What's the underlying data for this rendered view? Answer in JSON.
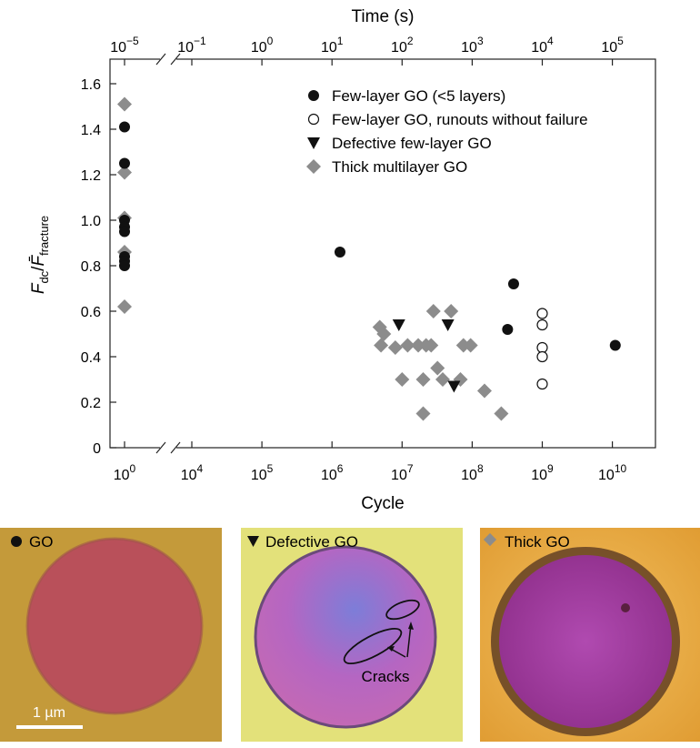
{
  "chart_data": {
    "type": "scatter",
    "xlabel": "Cycle",
    "x2label": "Time (s)",
    "ylabel": "F_dc/F̄_fracture",
    "xscale": "log",
    "x_axis_break": "between 10^0 and 10^4 cycles",
    "ylim": [
      0,
      1.7
    ],
    "yticks": [
      "0",
      "0.2",
      "0.4",
      "0.6",
      "0.8",
      "1.0",
      "1.2",
      "1.4",
      "1.6"
    ],
    "xticks": [
      {
        "base": "10",
        "exp": "0",
        "value": 1
      },
      {
        "base": "10",
        "exp": "4",
        "value": 10000
      },
      {
        "base": "10",
        "exp": "5",
        "value": 100000
      },
      {
        "base": "10",
        "exp": "6",
        "value": 1000000
      },
      {
        "base": "10",
        "exp": "7",
        "value": 10000000
      },
      {
        "base": "10",
        "exp": "8",
        "value": 100000000
      },
      {
        "base": "10",
        "exp": "9",
        "value": 1000000000
      },
      {
        "base": "10",
        "exp": "10",
        "value": 10000000000
      }
    ],
    "x2ticks": [
      {
        "base": "10",
        "exp": "−5",
        "cycle_value": 1
      },
      {
        "base": "10",
        "exp": "−1",
        "cycle_value": 10000
      },
      {
        "base": "10",
        "exp": "0",
        "cycle_value": 100000
      },
      {
        "base": "10",
        "exp": "1",
        "cycle_value": 1000000
      },
      {
        "base": "10",
        "exp": "2",
        "cycle_value": 10000000
      },
      {
        "base": "10",
        "exp": "3",
        "cycle_value": 100000000
      },
      {
        "base": "10",
        "exp": "4",
        "cycle_value": 1000000000
      },
      {
        "base": "10",
        "exp": "5",
        "cycle_value": 10000000000
      }
    ],
    "legend_position": "top-right",
    "series": [
      {
        "name": "Few-layer GO (<5 layers)",
        "marker": "filled-circle",
        "color": "#111111",
        "points": [
          [
            1,
            1.41
          ],
          [
            1,
            1.25
          ],
          [
            1,
            1.0
          ],
          [
            1,
            0.97
          ],
          [
            1,
            0.95
          ],
          [
            1,
            0.84
          ],
          [
            1,
            0.82
          ],
          [
            1,
            0.8
          ],
          [
            1300000,
            0.86
          ],
          [
            320000000,
            0.52
          ],
          [
            390000000,
            0.72
          ],
          [
            11000000000,
            0.45
          ]
        ]
      },
      {
        "name": "Few-layer GO, runouts without failure",
        "marker": "open-circle",
        "color": "#111111",
        "points": [
          [
            1000000000,
            0.59
          ],
          [
            1000000000,
            0.54
          ],
          [
            1000000000,
            0.44
          ],
          [
            1000000000,
            0.4
          ],
          [
            1000000000,
            0.28
          ]
        ]
      },
      {
        "name": "Defective few-layer GO",
        "marker": "filled-triangle-down",
        "color": "#111111",
        "points": [
          [
            9000000,
            0.54
          ],
          [
            45000000,
            0.54
          ],
          [
            55000000,
            0.27
          ]
        ]
      },
      {
        "name": "Thick multilayer GO",
        "marker": "diamond",
        "color": "#8c8c8c",
        "points": [
          [
            1,
            1.51
          ],
          [
            1,
            1.21
          ],
          [
            1,
            1.01
          ],
          [
            1,
            0.86
          ],
          [
            1,
            0.62
          ],
          [
            4800000,
            0.53
          ],
          [
            5500000,
            0.5
          ],
          [
            5000000,
            0.45
          ],
          [
            8000000,
            0.44
          ],
          [
            10000000,
            0.3
          ],
          [
            12000000,
            0.45
          ],
          [
            17000000,
            0.45
          ],
          [
            20000000,
            0.3
          ],
          [
            22000000,
            0.45
          ],
          [
            20000000,
            0.15
          ],
          [
            26000000,
            0.45
          ],
          [
            28000000,
            0.6
          ],
          [
            32000000,
            0.35
          ],
          [
            38000000,
            0.3
          ],
          [
            50000000,
            0.6
          ],
          [
            68000000,
            0.3
          ],
          [
            75000000,
            0.45
          ],
          [
            95000000,
            0.45
          ],
          [
            150000000,
            0.25
          ],
          [
            260000000,
            0.15
          ]
        ]
      }
    ]
  },
  "micrographs": [
    {
      "marker": "filled-circle",
      "label": "GO",
      "background": "#c49a3a",
      "disc_color": "#b9505a",
      "scale_bar": "1 µm"
    },
    {
      "marker": "filled-triangle-down",
      "label": "Defective GO",
      "background": "#e3e17a",
      "disc_color": "#b566b8",
      "annotation": "Cracks"
    },
    {
      "marker": "diamond",
      "label": "Thick GO",
      "background": "#e3a53c",
      "disc_color": "#a0389a"
    }
  ]
}
